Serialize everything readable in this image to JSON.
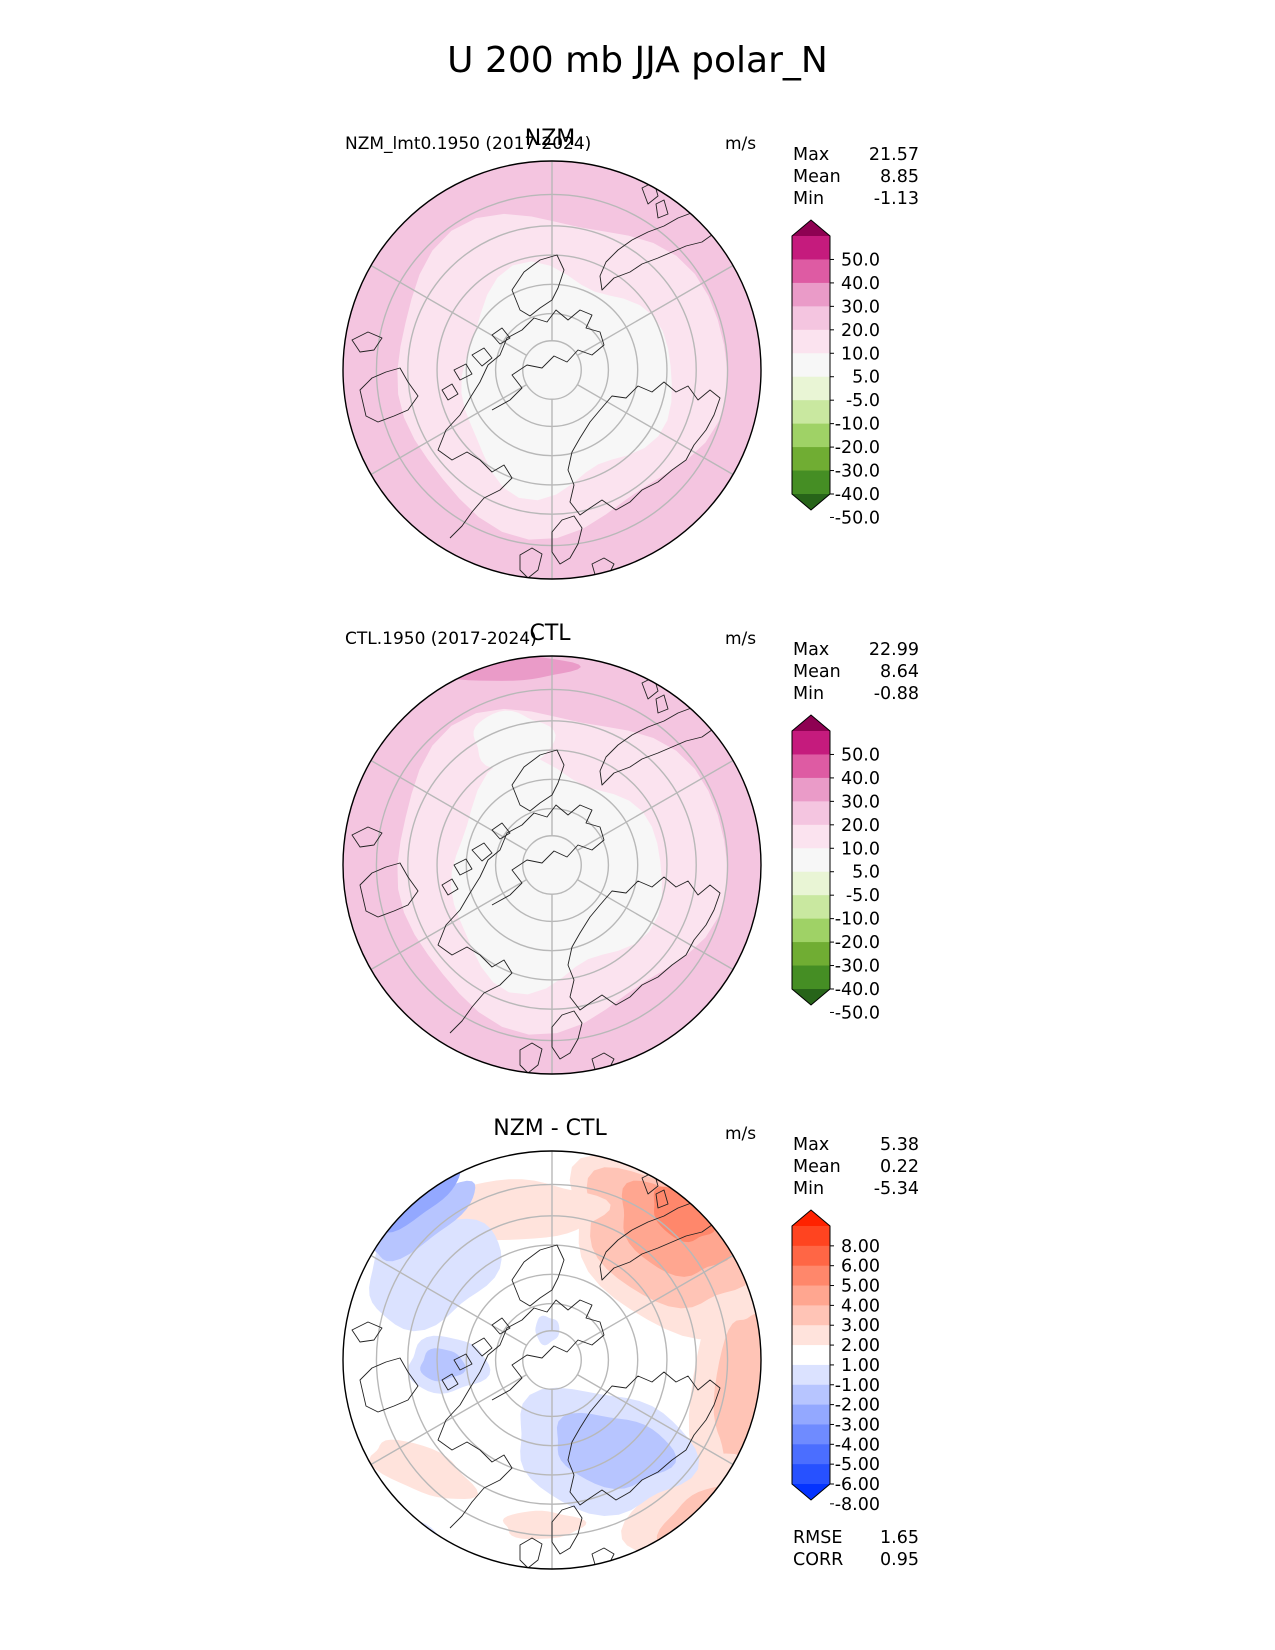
{
  "title": "U 200 mb JJA polar_N",
  "panels": [
    {
      "id": "test",
      "title": "NZM",
      "left_title": "NZM_lmt0.1950 (2017-2024)",
      "units": "m/s",
      "stats": {
        "max_label": "Max",
        "max": "21.57",
        "mean_label": "Mean",
        "mean": "8.85",
        "min_label": "Min",
        "min": "-1.13"
      }
    },
    {
      "id": "ref",
      "title": "CTL",
      "left_title": "CTL.1950 (2017-2024)",
      "units": "m/s",
      "stats": {
        "max_label": "Max",
        "max": "22.99",
        "mean_label": "Mean",
        "mean": "8.64",
        "min_label": "Min",
        "min": "-0.88"
      }
    },
    {
      "id": "diff",
      "title": "NZM - CTL",
      "left_title": "",
      "units": "m/s",
      "stats": {
        "max_label": "Max",
        "max": "5.38",
        "mean_label": "Mean",
        "mean": "0.22",
        "min_label": "Min",
        "min": "-5.34"
      }
    }
  ],
  "metrics": {
    "rmse_label": "RMSE",
    "rmse": "1.65",
    "corr_label": "CORR",
    "corr": "0.95"
  },
  "colorbars": {
    "field": {
      "levels": [
        "50.0",
        "40.0",
        "30.0",
        "20.0",
        "10.0",
        "5.0",
        "-5.0",
        "-10.0",
        "-20.0",
        "-30.0",
        "-40.0",
        "-50.0"
      ],
      "colors": [
        "#8e0152",
        "#c51b7d",
        "#de5ba3",
        "#ea9bc8",
        "#f4c5e0",
        "#fbe3ef",
        "#f7f7f7",
        "#e9f5d5",
        "#c9e8a0",
        "#9fd266",
        "#70ad33",
        "#458e24",
        "#276419"
      ]
    },
    "diff": {
      "levels": [
        "8.00",
        "6.00",
        "5.00",
        "4.00",
        "3.00",
        "2.00",
        "1.00",
        "-1.00",
        "-2.00",
        "-3.00",
        "-4.00",
        "-5.00",
        "-6.00",
        "-8.00"
      ],
      "colors": [
        "#ff2200",
        "#ff4420",
        "#ff6645",
        "#ff876b",
        "#ffa690",
        "#ffc4b6",
        "#ffe3dc",
        "#ffffff",
        "#dbe2ff",
        "#b7c5ff",
        "#93a8ff",
        "#6f8bff",
        "#4b6eff",
        "#2751ff",
        "#0433ff"
      ]
    }
  },
  "chart_data": [
    {
      "type": "heatmap",
      "projection": "north polar stereographic",
      "title": "NZM",
      "subtitle": "NZM_lmt0.1950 (2017-2024)",
      "units": "m/s",
      "max": 21.57,
      "mean": 8.85,
      "min": -1.13,
      "contour_levels": [
        -50,
        -40,
        -30,
        -20,
        -10,
        -5,
        5,
        10,
        20,
        30,
        40,
        50
      ]
    },
    {
      "type": "heatmap",
      "projection": "north polar stereographic",
      "title": "CTL",
      "subtitle": "CTL.1950 (2017-2024)",
      "units": "m/s",
      "max": 22.99,
      "mean": 8.64,
      "min": -0.88,
      "contour_levels": [
        -50,
        -40,
        -30,
        -20,
        -10,
        -5,
        5,
        10,
        20,
        30,
        40,
        50
      ]
    },
    {
      "type": "heatmap",
      "projection": "north polar stereographic",
      "title": "NZM - CTL",
      "units": "m/s",
      "max": 5.38,
      "mean": 0.22,
      "min": -5.34,
      "contour_levels": [
        -8,
        -6,
        -5,
        -4,
        -3,
        -2,
        -1,
        1,
        2,
        3,
        4,
        5,
        6,
        8
      ],
      "rmse": 1.65,
      "corr": 0.95
    }
  ]
}
